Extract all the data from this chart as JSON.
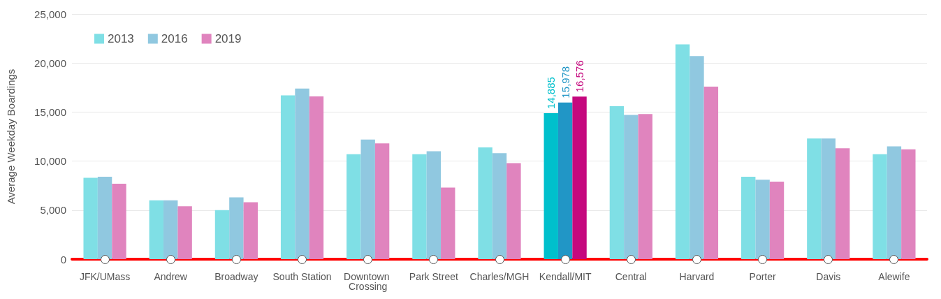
{
  "chart_data": {
    "type": "bar",
    "ylabel": "Average Weekday Boardings",
    "categories": [
      "JFK/UMass",
      "Andrew",
      "Broadway",
      "South Station",
      "Downtown Crossing",
      "Park Street",
      "Charles/MGH",
      "Kendall/MIT",
      "Central",
      "Harvard",
      "Porter",
      "Davis",
      "Alewife"
    ],
    "series": [
      {
        "name": "2013",
        "color": "#7fdfe5",
        "colors": [
          "#7fdfe5",
          "#7fdfe5",
          "#7fdfe5",
          "#7fdfe5",
          "#7fdfe5",
          "#7fdfe5",
          "#7fdfe5",
          "#00c0cc",
          "#7fdfe5",
          "#7fdfe5",
          "#7fdfe5",
          "#7fdfe5",
          "#7fdfe5"
        ],
        "values": [
          8300,
          6000,
          5000,
          16700,
          10700,
          10700,
          11400,
          14885,
          15600,
          21900,
          8400,
          12300,
          10700
        ],
        "value_labels": [
          null,
          null,
          null,
          null,
          null,
          null,
          null,
          "14,885",
          null,
          null,
          null,
          null,
          null
        ]
      },
      {
        "name": "2016",
        "color": "#90c8e0",
        "colors": [
          "#90c8e0",
          "#90c8e0",
          "#90c8e0",
          "#90c8e0",
          "#90c8e0",
          "#90c8e0",
          "#90c8e0",
          "#2196c6",
          "#90c8e0",
          "#90c8e0",
          "#90c8e0",
          "#90c8e0",
          "#90c8e0"
        ],
        "values": [
          8400,
          6000,
          6300,
          17400,
          12200,
          11000,
          10800,
          15978,
          14700,
          20700,
          8100,
          12300,
          11500
        ],
        "value_labels": [
          null,
          null,
          null,
          null,
          null,
          null,
          null,
          "15,978",
          null,
          null,
          null,
          null,
          null
        ]
      },
      {
        "name": "2019",
        "color": "#e084be",
        "colors": [
          "#e084be",
          "#e084be",
          "#e084be",
          "#e084be",
          "#e084be",
          "#e084be",
          "#e084be",
          "#c5087e",
          "#e084be",
          "#e084be",
          "#e084be",
          "#e084be",
          "#e084be"
        ],
        "values": [
          7700,
          5400,
          5800,
          16600,
          11800,
          7300,
          9800,
          16576,
          14800,
          17600,
          7900,
          11300,
          11200
        ],
        "value_labels": [
          null,
          null,
          null,
          null,
          null,
          null,
          null,
          "16,576",
          null,
          null,
          null,
          null,
          null
        ]
      }
    ],
    "ylim": [
      0,
      25000
    ],
    "yticks": [
      0,
      {
        "value": 5000,
        "label": "5,000"
      },
      {
        "value": 10000,
        "label": "10,000"
      },
      {
        "value": 15000,
        "label": "15,000"
      },
      {
        "value": 20000,
        "label": "20,000"
      },
      {
        "value": 25000,
        "label": "25,000"
      }
    ],
    "grid": "y",
    "legend": "top left"
  }
}
